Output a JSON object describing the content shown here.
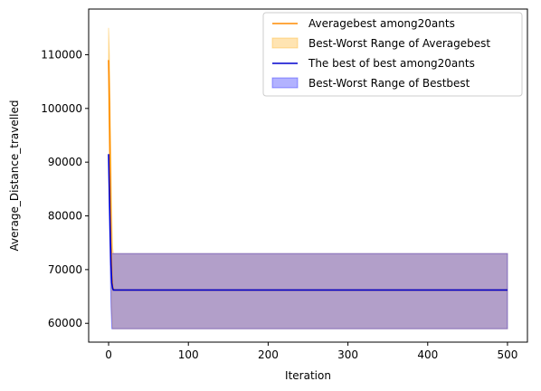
{
  "chart_data": {
    "type": "line",
    "xlabel": "Iteration",
    "ylabel": "Average_Distance_travelled",
    "xlim": [
      -25,
      525
    ],
    "ylim": [
      56500,
      118500
    ],
    "x_ticks": [
      0,
      100,
      200,
      300,
      400,
      500
    ],
    "y_ticks": [
      60000,
      70000,
      80000,
      90000,
      100000,
      110000
    ],
    "x_tick_labels": [
      "0",
      "100",
      "200",
      "300",
      "400",
      "500"
    ],
    "y_tick_labels": [
      "60000",
      "70000",
      "80000",
      "90000",
      "100000",
      "110000"
    ],
    "grid": false,
    "legend_position": "upper-right",
    "series": [
      {
        "name": "Averagebest among20ants",
        "kind": "line",
        "color": "#ff8c00",
        "x": [
          0,
          1,
          2,
          3,
          4,
          5,
          6,
          8,
          10,
          500
        ],
        "y": [
          109000,
          101000,
          88000,
          76000,
          69000,
          66800,
          66300,
          66200,
          66200,
          66200
        ]
      },
      {
        "name": "Best-Worst Range of Averagebest",
        "kind": "band",
        "color": "#ffa500",
        "x": [
          0,
          1,
          2,
          3,
          4,
          5,
          6,
          7,
          500
        ],
        "upper": [
          115000,
          110000,
          100000,
          90000,
          80000,
          74000,
          73000,
          73000,
          73000
        ],
        "lower": [
          101000,
          92000,
          80000,
          70000,
          62000,
          59000,
          59000,
          59000,
          59000
        ]
      },
      {
        "name": "The best of best among20ants",
        "kind": "line",
        "color": "#0000cd",
        "x": [
          0,
          1,
          2,
          3,
          4,
          5,
          6,
          8,
          10,
          500
        ],
        "y": [
          91500,
          84000,
          77000,
          71000,
          67500,
          66500,
          66200,
          66200,
          66200,
          66200
        ]
      },
      {
        "name": "Best-Worst Range of Bestbest",
        "kind": "band",
        "color": "#0000ff",
        "x": [
          0,
          1,
          2,
          3,
          4,
          5,
          6,
          7,
          500
        ],
        "upper": [
          91500,
          88000,
          82000,
          76000,
          73000,
          73000,
          73000,
          73000,
          73000
        ],
        "lower": [
          91500,
          80000,
          70000,
          63000,
          59000,
          59000,
          59000,
          59000,
          59000
        ]
      }
    ]
  }
}
